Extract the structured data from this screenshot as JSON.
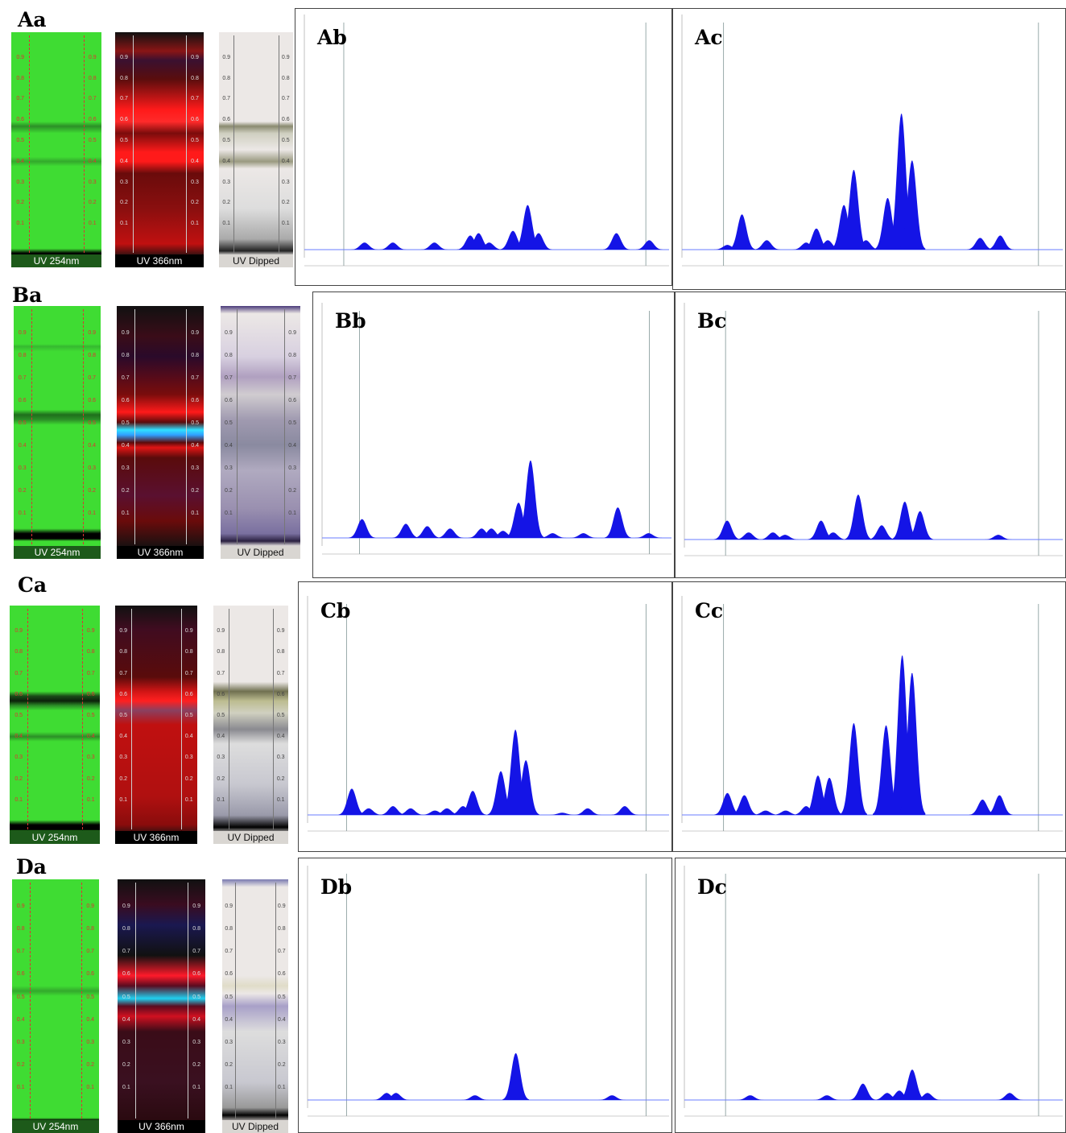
{
  "rf_ticks": [
    0.1,
    0.2,
    0.3,
    0.4,
    0.5,
    0.6,
    0.7,
    0.8,
    0.9
  ],
  "profile_xlim": [
    0,
    1
  ],
  "profile_ylim": [
    0,
    100
  ],
  "rows": [
    {
      "plate_label": "Aa",
      "captions": [
        "UV 254nm",
        "UV 366nm",
        "UV Dipped"
      ],
      "profiles": [
        {
          "label": "Ab",
          "peak_positions": [
            0.185,
            0.26,
            0.37,
            0.465,
            0.487,
            0.515,
            0.578,
            0.617,
            0.646,
            0.852,
            0.939
          ],
          "peak_heights": [
            3,
            3,
            3,
            6,
            7,
            3,
            8,
            19,
            7,
            7,
            4
          ]
        },
        {
          "label": "Ac",
          "peak_positions": [
            0.14,
            0.177,
            0.24,
            0.34,
            0.366,
            0.395,
            0.436,
            0.461,
            0.492,
            0.547,
            0.582,
            0.609,
            0.782,
            0.833
          ],
          "peak_heights": [
            2,
            15,
            4,
            3,
            9,
            4,
            19,
            34,
            4,
            22,
            58,
            38,
            5,
            6
          ]
        }
      ]
    },
    {
      "plate_label": "Ba",
      "captions": [
        "UV 254nm",
        "UV 366nm",
        "UV Dipped"
      ],
      "profiles": [
        {
          "label": "Bb",
          "peak_positions": [
            0.137,
            0.258,
            0.317,
            0.38,
            0.467,
            0.494,
            0.526,
            0.569,
            0.602,
            0.663,
            0.748,
            0.843,
            0.928
          ],
          "peak_heights": [
            8,
            6,
            5,
            4,
            4,
            4,
            3,
            15,
            33,
            2,
            2,
            13,
            2
          ]
        },
        {
          "label": "Bc",
          "peak_positions": [
            0.134,
            0.189,
            0.251,
            0.282,
            0.374,
            0.405,
            0.469,
            0.529,
            0.588,
            0.627,
            0.827
          ],
          "peak_heights": [
            8,
            3,
            3,
            2,
            8,
            3,
            19,
            6,
            16,
            12,
            2
          ]
        }
      ]
    },
    {
      "plate_label": "Ca",
      "captions": [
        "UV 254nm",
        "UV 366nm",
        "UV Dipped"
      ],
      "profiles": [
        {
          "label": "Cb",
          "peak_positions": [
            0.144,
            0.189,
            0.254,
            0.301,
            0.366,
            0.398,
            0.441,
            0.467,
            0.542,
            0.581,
            0.609,
            0.706,
            0.774,
            0.873
          ],
          "peak_heights": [
            12,
            3,
            4,
            3,
            2,
            3,
            4,
            11,
            20,
            39,
            25,
            1,
            3,
            4
          ]
        },
        {
          "label": "Cc",
          "peak_positions": [
            0.14,
            0.183,
            0.237,
            0.288,
            0.34,
            0.37,
            0.399,
            0.461,
            0.543,
            0.584,
            0.609,
            0.788,
            0.831
          ],
          "peak_heights": [
            10,
            9,
            2,
            2,
            4,
            18,
            17,
            42,
            41,
            73,
            65,
            7,
            9
          ]
        }
      ]
    },
    {
      "plate_label": "Da",
      "captions": [
        "UV 254nm",
        "UV 366nm",
        "UV Dipped"
      ],
      "profiles": [
        {
          "label": "Db",
          "peak_positions": [
            0.237,
            0.262,
            0.473,
            0.582,
            0.839
          ],
          "peak_heights": [
            3,
            3,
            2,
            20,
            2
          ]
        },
        {
          "label": "Dc",
          "peak_positions": [
            0.193,
            0.389,
            0.481,
            0.543,
            0.574,
            0.607,
            0.646,
            0.856
          ],
          "peak_heights": [
            2,
            2,
            7,
            3,
            4,
            13,
            3,
            3
          ]
        }
      ]
    }
  ]
}
